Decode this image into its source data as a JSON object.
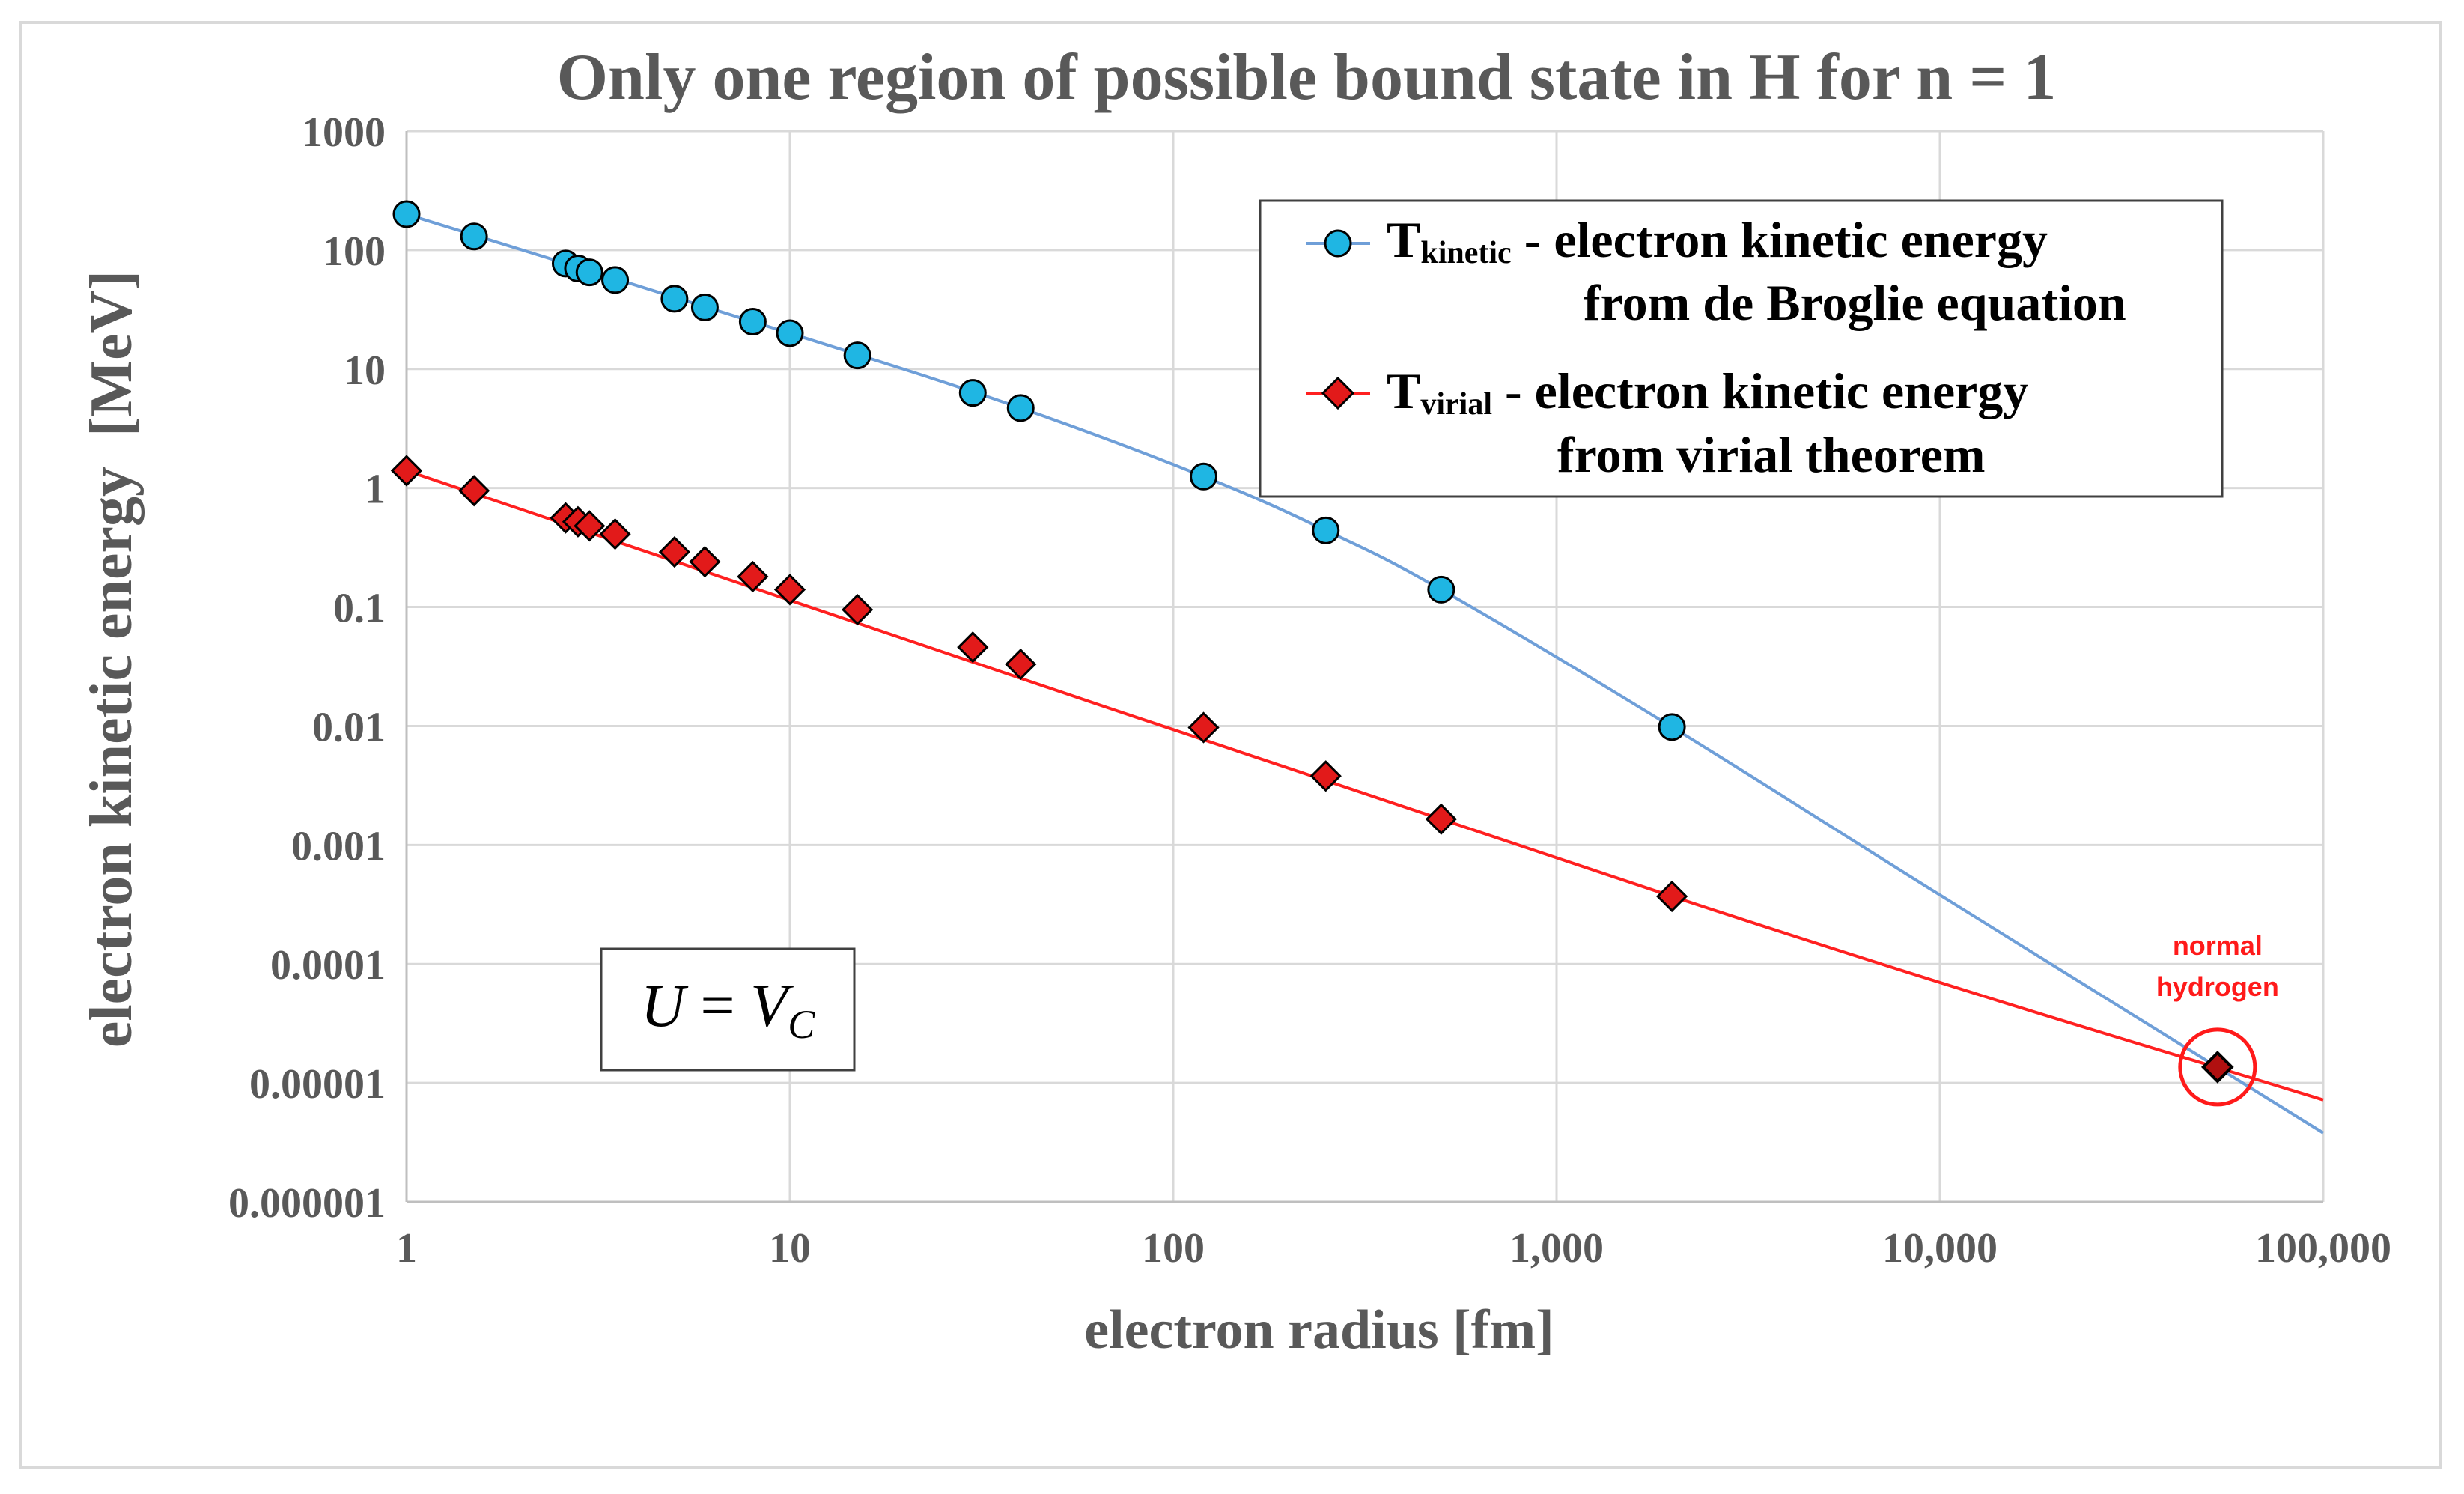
{
  "chart_data": {
    "type": "scatter",
    "title": "Only one region of possible bound state in H for n = 1",
    "xlabel": "electron radius [fm]",
    "ylabel": "electron kinetic energy  [MeV]",
    "x_scale": "log",
    "y_scale": "log",
    "xlim": [
      1,
      100000
    ],
    "ylim": [
      1e-06,
      1000
    ],
    "grid": true,
    "legend_position": "top-right",
    "x_ticks": [
      {
        "value": 1,
        "label": "1"
      },
      {
        "value": 10,
        "label": "10"
      },
      {
        "value": 100,
        "label": "100"
      },
      {
        "value": 1000,
        "label": "1,000"
      },
      {
        "value": 10000,
        "label": "10,000"
      },
      {
        "value": 100000,
        "label": "100,000"
      }
    ],
    "y_ticks": [
      {
        "value": 1000,
        "label": "1000"
      },
      {
        "value": 100,
        "label": "100"
      },
      {
        "value": 10,
        "label": "10"
      },
      {
        "value": 1,
        "label": "1"
      },
      {
        "value": 0.1,
        "label": "0.1"
      },
      {
        "value": 0.01,
        "label": "0.01"
      },
      {
        "value": 0.001,
        "label": "0.001"
      },
      {
        "value": 0.0001,
        "label": "0.0001"
      },
      {
        "value": 1e-05,
        "label": "0.00001"
      },
      {
        "value": 1e-06,
        "label": "0.000001"
      }
    ],
    "series": [
      {
        "key": "kinetic",
        "legend_main": "T",
        "legend_sub": "kinetic",
        "legend_line1": " - electron kinetic energy",
        "legend_line2": "from de Broglie equation",
        "marker": "circle",
        "line_color": "#6f9fd8",
        "marker_color": "#1fb6e3",
        "points": [
          [
            1,
            200
          ],
          [
            1.5,
            130
          ],
          [
            2.6,
            77
          ],
          [
            2.8,
            70
          ],
          [
            3,
            65
          ],
          [
            3.5,
            56
          ],
          [
            5,
            39
          ],
          [
            6,
            33
          ],
          [
            8,
            25
          ],
          [
            10,
            20
          ],
          [
            15,
            13
          ],
          [
            30,
            6.3
          ],
          [
            40,
            4.7
          ],
          [
            120,
            1.25
          ],
          [
            250,
            0.44
          ],
          [
            500,
            0.14
          ],
          [
            2000,
            0.0098
          ]
        ],
        "line": [
          [
            1,
            200
          ],
          [
            10,
            20
          ],
          [
            40,
            4.7
          ],
          [
            120,
            1.25
          ],
          [
            250,
            0.44
          ],
          [
            500,
            0.14
          ],
          [
            2000,
            0.0098
          ],
          [
            10000,
            0.00038
          ],
          [
            100000,
            3.8e-06
          ]
        ]
      },
      {
        "key": "virial",
        "legend_main": "T",
        "legend_sub": "virial",
        "legend_line1": " - electron kinetic energy",
        "legend_line2": "from virial theorem",
        "marker": "diamond",
        "line_color": "#ff2020",
        "marker_color": "#e21a1a",
        "points": [
          [
            1,
            1.4
          ],
          [
            1.5,
            0.95
          ],
          [
            2.6,
            0.56
          ],
          [
            2.8,
            0.52
          ],
          [
            3,
            0.48
          ],
          [
            3.5,
            0.41
          ],
          [
            5,
            0.29
          ],
          [
            6,
            0.24
          ],
          [
            8,
            0.18
          ],
          [
            10,
            0.14
          ],
          [
            15,
            0.095
          ],
          [
            30,
            0.046
          ],
          [
            40,
            0.033
          ],
          [
            120,
            0.0097
          ],
          [
            250,
            0.0038
          ],
          [
            500,
            0.00165
          ],
          [
            2000,
            0.00037
          ]
        ],
        "line": [
          [
            1,
            1.4
          ],
          [
            2000,
            0.00037
          ],
          [
            100000,
            7.2e-06
          ]
        ]
      }
    ],
    "annotations": {
      "equation": {
        "lhs": "U",
        "eq": " = ",
        "rhs": "V",
        "sub": "C"
      },
      "highlight": {
        "x": 53000,
        "y": 1.36e-05,
        "label_line1": "normal",
        "label_line2": "hydrogen",
        "color": "#ff1a1a"
      }
    }
  }
}
